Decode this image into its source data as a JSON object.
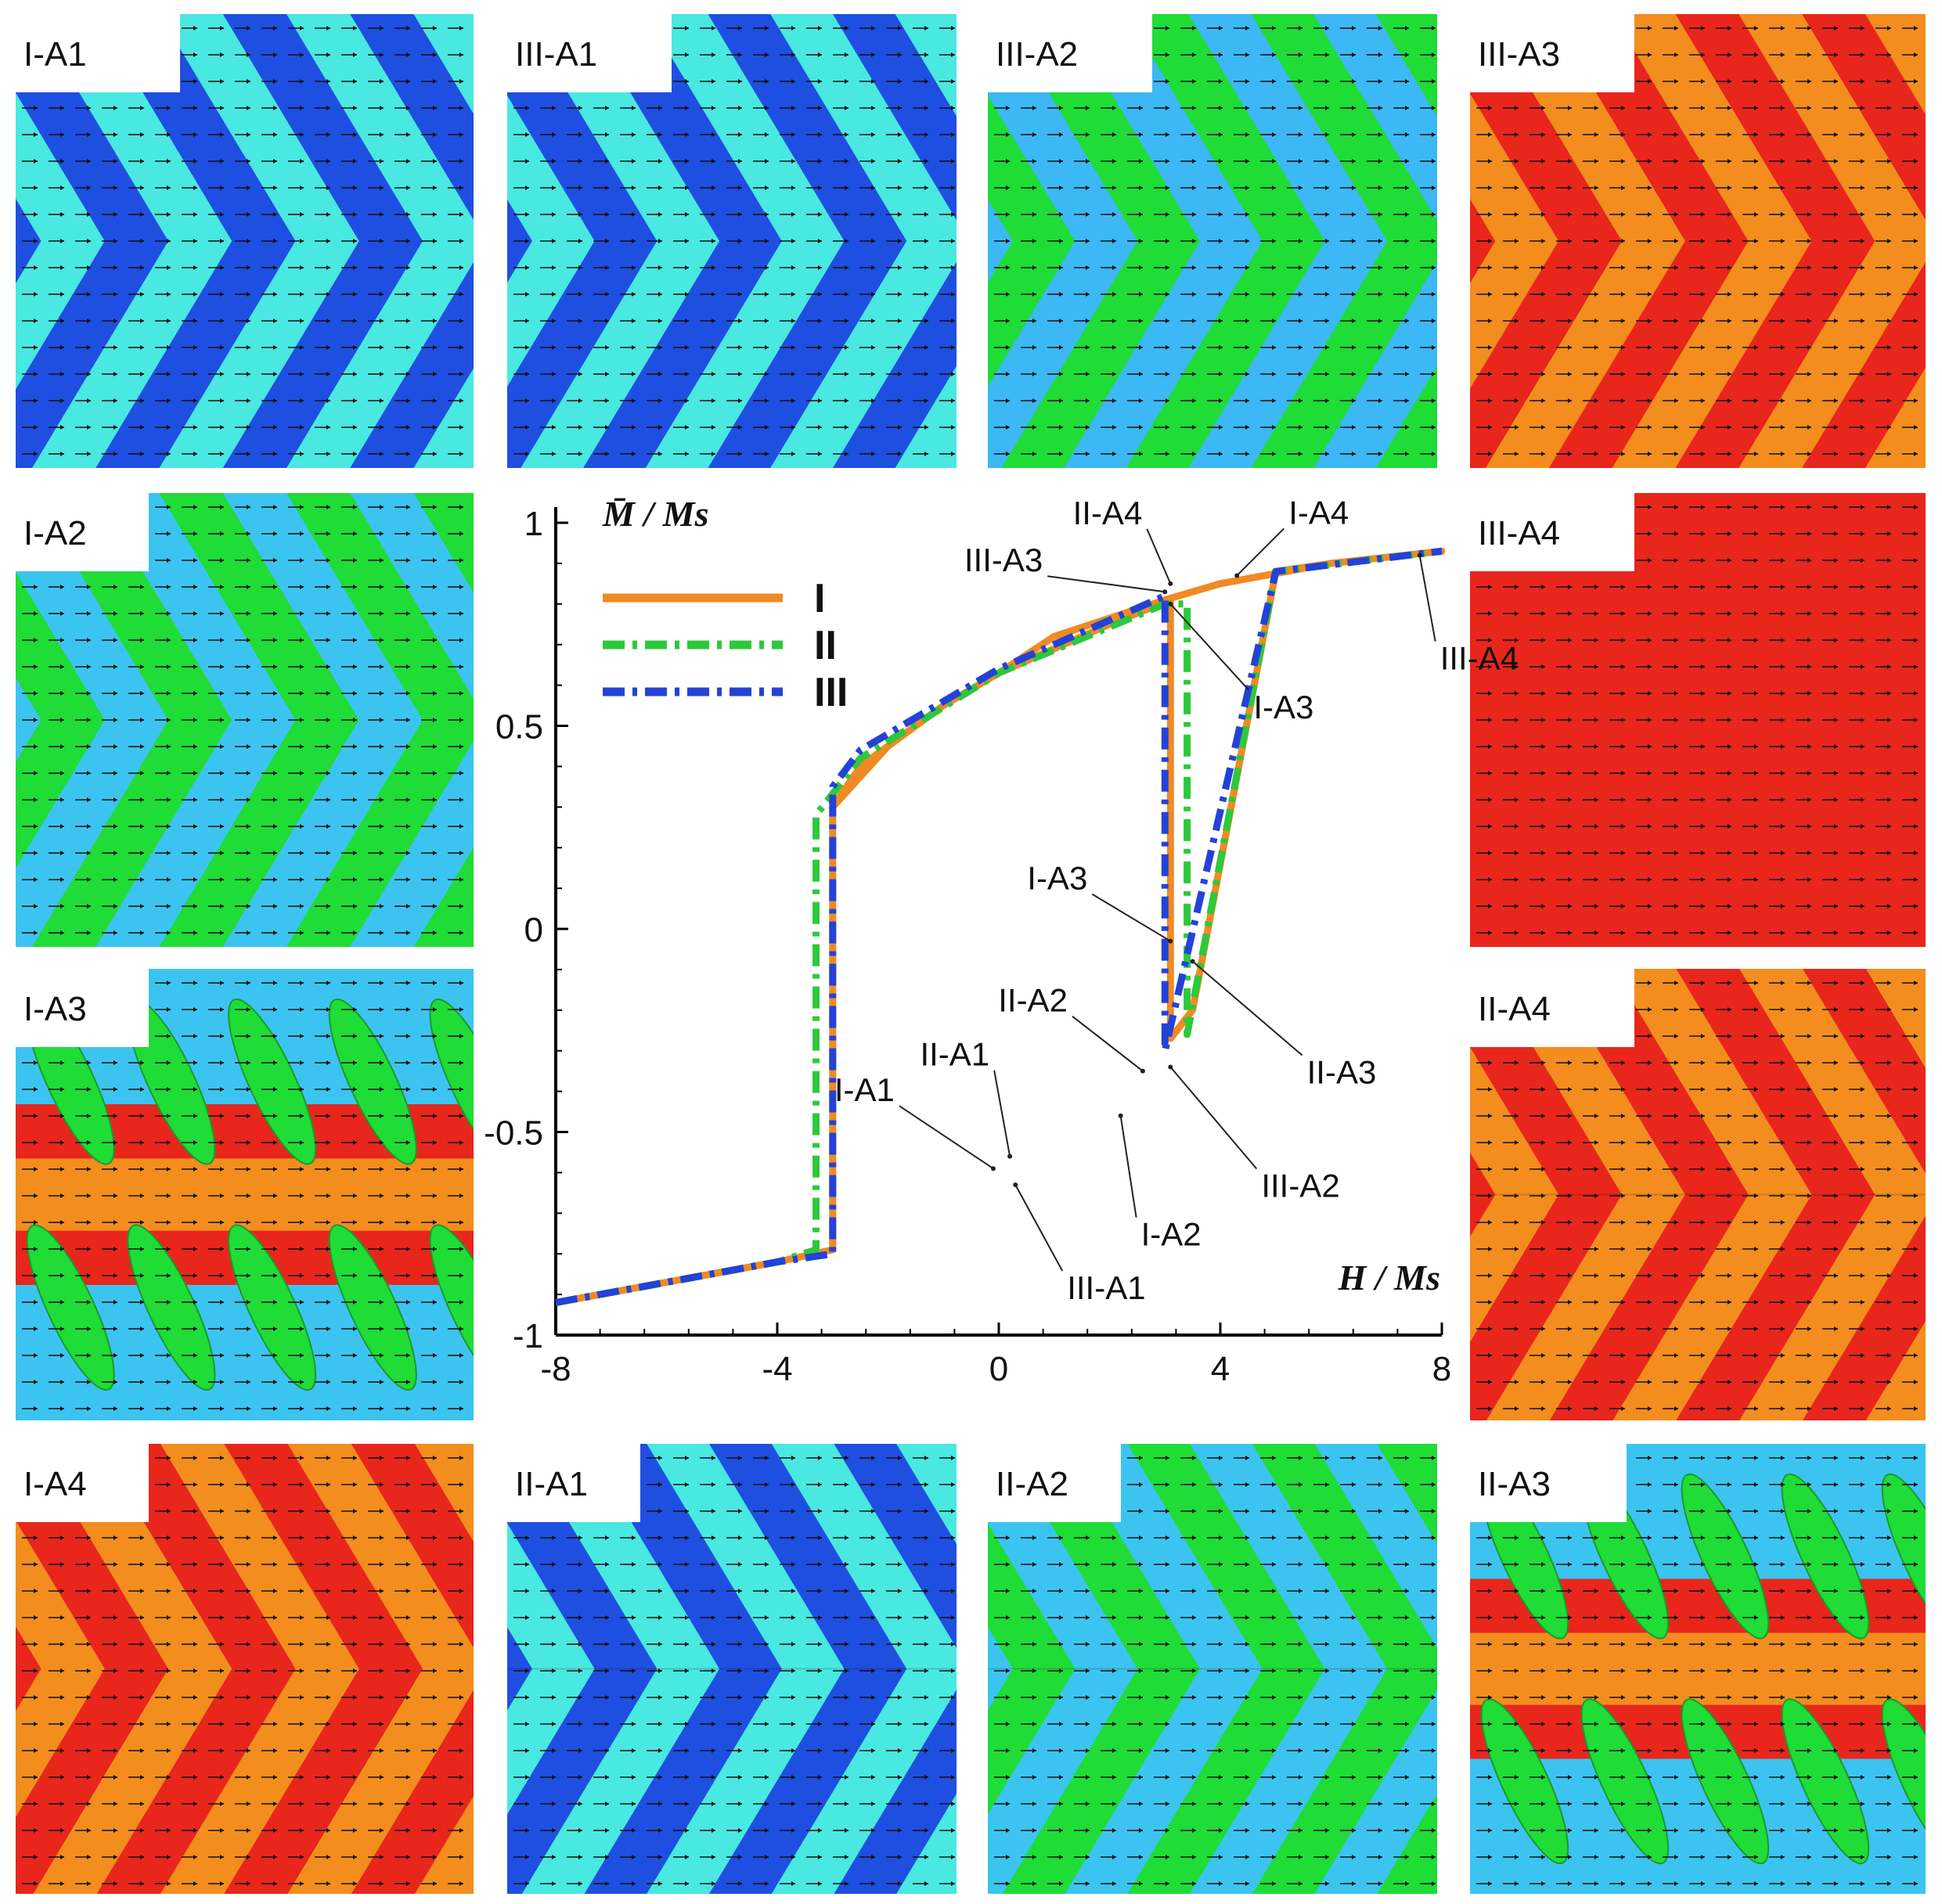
{
  "colors": {
    "blue": "#1f4fe0",
    "cyan": "#49e8e0",
    "lightblue": "#3cb8f4",
    "green": "#1fdc37",
    "red": "#e8261c",
    "orange": "#f38d1e",
    "skyblue": "#3cc4f0"
  },
  "panels": [
    {
      "label": "I-A1",
      "pattern": "chevron",
      "colors": [
        "blue",
        "cyan"
      ],
      "split": false
    },
    {
      "label": "III-A1",
      "pattern": "chevron",
      "colors": [
        "blue",
        "cyan"
      ],
      "split": false
    },
    {
      "label": "III-A2",
      "pattern": "chevron",
      "colors": [
        "lightblue",
        "green"
      ],
      "split": false
    },
    {
      "label": "III-A3",
      "pattern": "chevron",
      "colors": [
        "red",
        "orange"
      ],
      "split": false
    },
    {
      "label": "I-A2",
      "pattern": "chevron",
      "colors": [
        "skyblue",
        "green"
      ],
      "split": false
    },
    {
      "label": "III-A4",
      "pattern": "chevron",
      "colors": [
        "red",
        "red"
      ],
      "split": false
    },
    {
      "label": "I-A3",
      "pattern": "rotated",
      "colors": [
        "skyblue",
        "green",
        "red",
        "orange"
      ],
      "split": true
    },
    {
      "label": "II-A4",
      "pattern": "chevron",
      "colors": [
        "red",
        "orange"
      ],
      "split": true
    },
    {
      "label": "I-A4",
      "pattern": "chevron",
      "colors": [
        "red",
        "orange"
      ],
      "split": false
    },
    {
      "label": "II-A1",
      "pattern": "chevron",
      "colors": [
        "blue",
        "cyan"
      ],
      "split": true
    },
    {
      "label": "II-A2",
      "pattern": "chevron",
      "colors": [
        "skyblue",
        "green"
      ],
      "split": true
    },
    {
      "label": "II-A3",
      "pattern": "rotated",
      "colors": [
        "skyblue",
        "green",
        "red",
        "orange"
      ],
      "split": true
    }
  ],
  "chart_data": {
    "type": "line",
    "ylabel": "M̄ / Ms",
    "xlabel": "H / Ms",
    "xlim": [
      -8,
      8
    ],
    "ylim": [
      -1,
      1
    ],
    "xticks": [
      "-8",
      "-4",
      "0",
      "4",
      "8"
    ],
    "yticks": [
      "1",
      "0.5",
      "0",
      "-0.5",
      "-1"
    ],
    "series": [
      {
        "name": "I",
        "color": "#f08a24",
        "style": "solid",
        "x": [
          -8,
          -6,
          -4,
          -3.0,
          -3.0,
          -2.5,
          -1,
          0,
          2,
          3.1,
          3.1,
          3.5,
          5,
          6,
          8,
          6,
          4,
          3.0,
          1,
          0,
          -1,
          -2,
          -3.0
        ],
        "y": [
          -0.92,
          -0.87,
          -0.82,
          -0.79,
          0.3,
          0.4,
          0.55,
          0.63,
          0.75,
          0.81,
          -0.27,
          -0.2,
          0.88,
          0.9,
          0.93,
          0.9,
          0.85,
          0.81,
          0.72,
          0.63,
          0.55,
          0.45,
          0.3
        ]
      },
      {
        "name": "II",
        "color": "#2ec83c",
        "style": "dashdot",
        "x": [
          -8,
          -4,
          -3.3,
          -3.3,
          -2.5,
          0,
          3.0,
          3.4,
          3.4,
          5,
          8
        ],
        "y": [
          -0.92,
          -0.82,
          -0.79,
          0.28,
          0.42,
          0.63,
          0.8,
          0.8,
          -0.26,
          0.88,
          0.93
        ]
      },
      {
        "name": "III",
        "color": "#2442d6",
        "style": "dashdot",
        "x": [
          -8,
          -4,
          -3.0,
          -3.0,
          -2.5,
          0,
          3.0,
          3.0,
          5,
          8
        ],
        "y": [
          -0.92,
          -0.82,
          -0.8,
          0.35,
          0.44,
          0.64,
          0.82,
          -0.3,
          0.88,
          0.93
        ]
      }
    ],
    "legend": [
      "I",
      "II",
      "III"
    ],
    "legend_position": "top-left",
    "annotations": [
      {
        "text": "II-A4",
        "x": 3.1,
        "y": 0.85
      },
      {
        "text": "I-A4",
        "x": 4.3,
        "y": 0.87
      },
      {
        "text": "III-A3",
        "x": 3.0,
        "y": 0.83
      },
      {
        "text": "III-A4",
        "x": 7.6,
        "y": 0.92
      },
      {
        "text": "I-A3",
        "x": 3.1,
        "y": 0.8
      },
      {
        "text": "I-A3",
        "x": 3.1,
        "y": -0.03
      },
      {
        "text": "II-A2",
        "x": 2.6,
        "y": -0.35
      },
      {
        "text": "II-A1",
        "x": 0.2,
        "y": -0.56
      },
      {
        "text": "I-A1",
        "x": -0.1,
        "y": -0.59
      },
      {
        "text": "II-A3",
        "x": 3.5,
        "y": -0.08
      },
      {
        "text": "III-A2",
        "x": 3.1,
        "y": -0.34
      },
      {
        "text": "I-A2",
        "x": 2.2,
        "y": -0.46
      },
      {
        "text": "III-A1",
        "x": 0.3,
        "y": -0.63
      }
    ]
  }
}
